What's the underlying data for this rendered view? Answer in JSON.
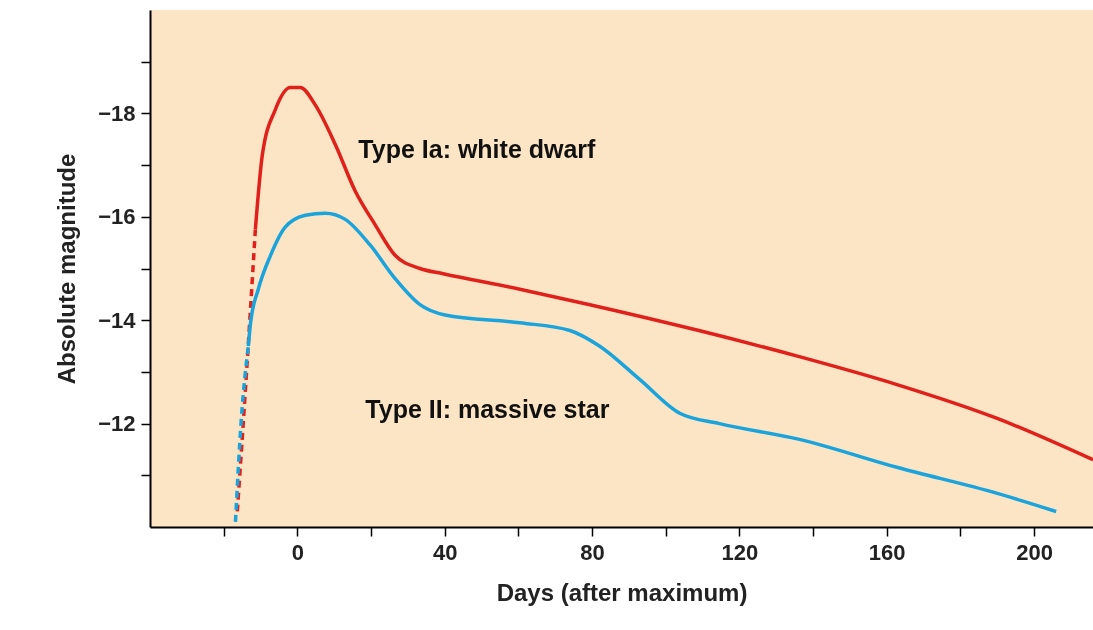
{
  "chart_data": {
    "type": "line",
    "xlabel": "Days (after maximum)",
    "ylabel": "Absolute magnitude",
    "xlim": [
      -40,
      216
    ],
    "ylim": [
      -10,
      -20
    ],
    "xticks": [
      {
        "value": -20,
        "label": null
      },
      0,
      {
        "value": 20,
        "label": null
      },
      40,
      {
        "value": 60,
        "label": null
      },
      80,
      {
        "value": 100,
        "label": null
      },
      120,
      {
        "value": 140,
        "label": null
      },
      160,
      {
        "value": 180,
        "label": null
      },
      200
    ],
    "yticks": [
      {
        "value": -11,
        "label": null
      },
      -12,
      {
        "value": -13,
        "label": null
      },
      -14,
      {
        "value": -15,
        "label": null
      },
      -16,
      {
        "value": -17,
        "label": null
      },
      -18,
      {
        "value": -19,
        "label": null
      }
    ],
    "grid": false,
    "legend": false,
    "marker": "none",
    "series": [
      {
        "color": "#e0201b",
        "line_style": "dashed",
        "x": [
          -16.3,
          -14.1,
          -11.4
        ],
        "values": [
          -10.3,
          -12.65,
          -15.75
        ]
      },
      {
        "name": "Type Ia: white dwarf",
        "color": "#e0201b",
        "line_style": "solid",
        "x": [
          -11.4,
          -9.5,
          -6,
          -1.9,
          0.8,
          4.9,
          10.3,
          15.7,
          21.1,
          26.6,
          33.3,
          39.6,
          60.4,
          79.4,
          109,
          136,
          163,
          190,
          216
        ],
        "values": [
          -15.75,
          -17.2,
          -18.07,
          -18.5,
          -18.5,
          -18.16,
          -17.4,
          -16.5,
          -15.85,
          -15.25,
          -15.0,
          -14.9,
          -14.6,
          -14.3,
          -13.8,
          -13.3,
          -12.75,
          -12.1,
          -11.3
        ]
      },
      {
        "color": "#1ba3dc",
        "line_style": "dashed",
        "x": [
          -16.8,
          -15.2,
          -13.3
        ],
        "values": [
          -10.1,
          -12.1,
          -13.5
        ]
      },
      {
        "name": "Type II: massive star",
        "color": "#1ba3dc",
        "line_style": "solid",
        "x": [
          -13.3,
          -12.7,
          -10.6,
          -7.3,
          -3.3,
          2.2,
          7.6,
          13,
          19.8,
          26.6,
          33.3,
          40.1,
          60.4,
          74,
          82,
          93,
          103.8,
          114.6,
          136,
          163,
          190,
          206
        ],
        "values": [
          -13.5,
          -13.95,
          -14.6,
          -15.25,
          -15.8,
          -16.03,
          -16.07,
          -15.95,
          -15.45,
          -14.8,
          -14.3,
          -14.1,
          -13.95,
          -13.8,
          -13.5,
          -12.85,
          -12.2,
          -12.0,
          -11.7,
          -11.15,
          -10.65,
          -10.3
        ]
      }
    ]
  }
}
